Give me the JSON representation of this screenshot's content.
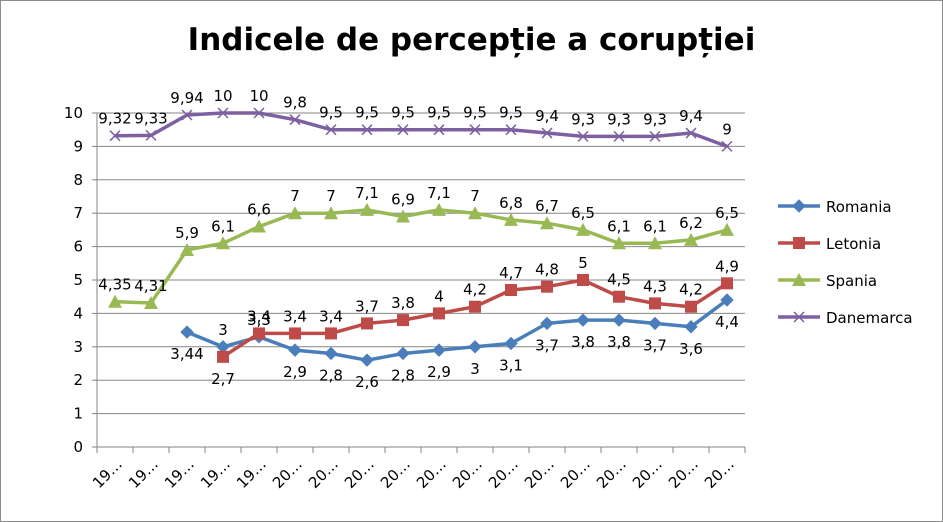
{
  "chart_data": {
    "type": "line",
    "title": "Indicele de percepție a corupției",
    "categories": [
      "19…",
      "19…",
      "19…",
      "19…",
      "19…",
      "20…",
      "20…",
      "20…",
      "20…",
      "20…",
      "20…",
      "20…",
      "20…",
      "20…",
      "20…",
      "20…",
      "20…",
      "20…"
    ],
    "ylim": [
      0,
      10
    ],
    "yticks": [
      0,
      1,
      2,
      3,
      4,
      5,
      6,
      7,
      8,
      9,
      10
    ],
    "grid": true,
    "legend": "right",
    "series": [
      {
        "name": "Romania",
        "color": "#4a7ebb",
        "marker": "diamond",
        "values": [
          null,
          null,
          3.44,
          3.0,
          3.3,
          2.9,
          2.8,
          2.6,
          2.8,
          2.9,
          3.0,
          3.1,
          3.7,
          3.8,
          3.8,
          3.7,
          3.6,
          4.4
        ],
        "labels": [
          null,
          null,
          "3,44",
          "3",
          "3,3",
          "2,9",
          "2,8",
          "2,6",
          "2,8",
          "2,9",
          "3",
          "3,1",
          "3,7",
          "3,8",
          "3,8",
          "3,7",
          "3,6",
          "4,4"
        ]
      },
      {
        "name": "Letonia",
        "color": "#be4b48",
        "marker": "square",
        "values": [
          null,
          null,
          null,
          2.7,
          3.4,
          3.4,
          3.4,
          3.7,
          3.8,
          4.0,
          4.2,
          4.7,
          4.8,
          5.0,
          4.5,
          4.3,
          4.2,
          4.9
        ],
        "labels": [
          null,
          null,
          null,
          "2,7",
          "3,4",
          "3,4",
          "3,4",
          "3,7",
          "3,8",
          "4",
          "4,2",
          "4,7",
          "4,8",
          "5",
          "4,5",
          "4,3",
          "4,2",
          "4,9"
        ]
      },
      {
        "name": "Spania",
        "color": "#98b954",
        "marker": "triangle",
        "values": [
          4.35,
          4.31,
          5.9,
          6.1,
          6.6,
          7.0,
          7.0,
          7.1,
          6.9,
          7.1,
          7.0,
          6.8,
          6.7,
          6.5,
          6.1,
          6.1,
          6.2,
          6.5
        ],
        "labels": [
          "4,35",
          "4,31",
          "5,9",
          "6,1",
          "6,6",
          "7",
          "7",
          "7,1",
          "6,9",
          "7,1",
          "7",
          "6,8",
          "6,7",
          "6,5",
          "6,1",
          "6,1",
          "6,2",
          "6,5"
        ]
      },
      {
        "name": "Danemarca",
        "color": "#7d60a0",
        "marker": "x",
        "values": [
          9.32,
          9.33,
          9.94,
          10,
          10,
          9.8,
          9.5,
          9.5,
          9.5,
          9.5,
          9.5,
          9.5,
          9.4,
          9.3,
          9.3,
          9.3,
          9.4,
          9.0
        ],
        "labels": [
          "9,32",
          "9,33",
          "9,94",
          "10",
          "10",
          "9,8",
          "9,5",
          "9,5",
          "9,5",
          "9,5",
          "9,5",
          "9,5",
          "9,4",
          "9,3",
          "9,3",
          "9,3",
          "9,4",
          "9"
        ]
      }
    ]
  }
}
